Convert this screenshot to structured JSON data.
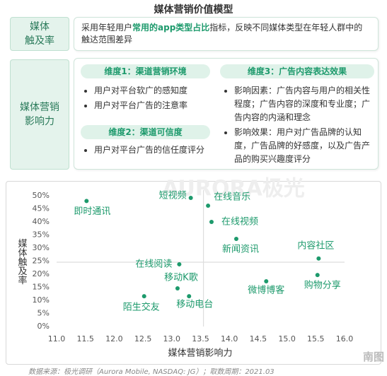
{
  "header": {
    "title": "媒体营销价值模型"
  },
  "framework": {
    "reach": {
      "label": [
        "媒体",
        "触及率"
      ],
      "description": [
        "采用年轻用户",
        "常用的app类型占比",
        "指标，反映不同媒体类型在年轻人群中的触达范围差异"
      ]
    },
    "influence": {
      "label": [
        "媒体营销",
        "影响力"
      ],
      "dimensions": [
        {
          "title": "维度1：渠道营销环境",
          "items": [
            "用户对平台软广的感知度",
            "用户对平台广告的注意率"
          ]
        },
        {
          "title": "维度2：渠道可信度",
          "items": [
            "用户对平台广告的信任度评分"
          ]
        },
        {
          "title": "维度3：广告内容表达效果",
          "items": [
            "影响因素：广告内容与用户的相关性程度；广告内容的深度和专业度；广告内容的内涵和理念",
            "影响效果：用户对广告品牌的认知度，广告品牌的好感度，以及广告产品的购买兴趣度评分"
          ]
        }
      ]
    }
  },
  "chart_data": {
    "type": "scatter",
    "x_label": "媒体营销影响力",
    "y_label": "媒体触及率",
    "watermark": "AURORA极光",
    "color": "#1d9a6c",
    "labels": [
      "即时通讯",
      "短视频",
      "在线音乐",
      "在线视频",
      "新闻资讯",
      "内容社区",
      "在线阅读",
      "移动K歌",
      "微博博客",
      "购物分享",
      "陌生交友",
      "移动电台"
    ],
    "x": [
      11.52,
      13.33,
      13.63,
      13.69,
      14.12,
      15.55,
      13.13,
      13.1,
      14.64,
      15.53,
      12.52,
      13.3
    ],
    "values": [
      48,
      49.2,
      46.2,
      40,
      33.5,
      26,
      23.8,
      14.6,
      17.3,
      19.7,
      11.6,
      11.6
    ],
    "reference_lines": {
      "x": 13.55,
      "y": 24.6
    },
    "xlim": [
      11,
      16
    ],
    "ylim": [
      0,
      50
    ],
    "xticks": [
      {
        "value": 11,
        "label": "11.0"
      },
      {
        "value": 11.5,
        "label": "11.5"
      },
      {
        "value": 12,
        "label": "12.0"
      },
      {
        "value": 12.5,
        "label": "12.5"
      },
      {
        "value": 13,
        "label": "13.0"
      },
      {
        "value": 13.5,
        "label": "13.5"
      },
      {
        "value": 14,
        "label": "14.0"
      },
      {
        "value": 14.5,
        "label": "14.5"
      },
      {
        "value": 15,
        "label": "15.0"
      },
      {
        "value": 15.5,
        "label": "15.5"
      },
      {
        "value": 16,
        "label": "16.0"
      }
    ],
    "yticks": [
      {
        "value": 0,
        "label": "0%"
      },
      {
        "value": 5,
        "label": "5%"
      },
      {
        "value": 10,
        "label": "10%"
      },
      {
        "value": 15,
        "label": "15%"
      },
      {
        "value": 20,
        "label": "20%"
      },
      {
        "value": 25,
        "label": "25%"
      },
      {
        "value": 30,
        "label": "30%"
      },
      {
        "value": 35,
        "label": "35%"
      },
      {
        "value": 40,
        "label": "40%"
      },
      {
        "value": 45,
        "label": "45%"
      },
      {
        "value": 50,
        "label": "50%"
      }
    ]
  },
  "source": "数据来源：极光调研（Aurora Mobile, NASDAQ: JG）；取数周期：2021.03",
  "badge": "南图"
}
